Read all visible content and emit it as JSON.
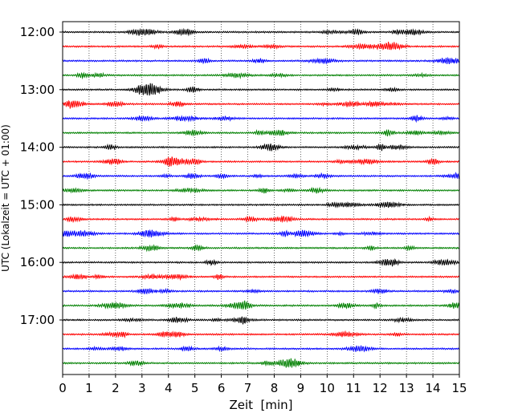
{
  "chart_data": {
    "type": "line",
    "subtype": "helicorder",
    "title": "",
    "xlabel": "Zeit  [min]",
    "ylabel": "UTC (Lokalzeit = UTC + 01:00)",
    "xlim": [
      0,
      15
    ],
    "x_ticks": [
      "0",
      "1",
      "2",
      "3",
      "4",
      "5",
      "6",
      "7",
      "8",
      "9",
      "10",
      "11",
      "12",
      "13",
      "14",
      "15"
    ],
    "grid": "vertical dotted lines at each minute",
    "row_interval_min": 15,
    "start_time": "12:00",
    "hour_labels": [
      "12:00",
      "13:00",
      "14:00",
      "15:00",
      "16:00",
      "17:00"
    ],
    "row_colors": [
      "#000000",
      "#ff0000",
      "#0000ff",
      "#008000"
    ],
    "rows": 24,
    "legend": "none"
  }
}
